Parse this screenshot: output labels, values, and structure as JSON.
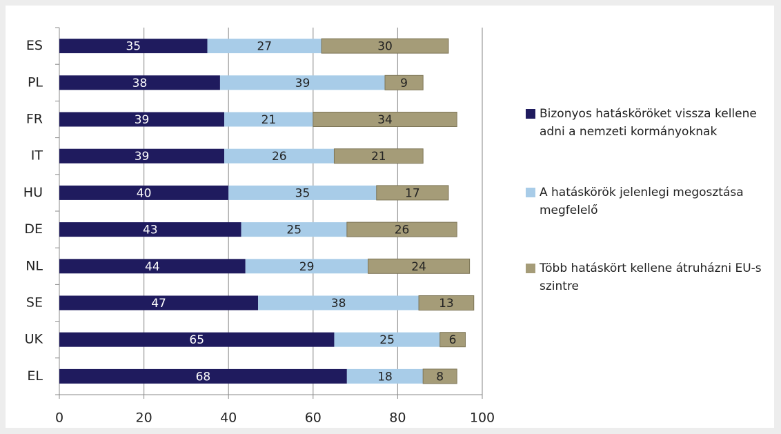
{
  "chart_data": {
    "type": "stacked_barh",
    "categories": [
      "ES",
      "PL",
      "FR",
      "IT",
      "HU",
      "DE",
      "NL",
      "SE",
      "UK",
      "EL"
    ],
    "series": [
      {
        "name": "Bizonyos hatásköröket vissza kellene adni a nemzeti kormányoknak",
        "color": "#1f1b5e",
        "values": [
          35,
          38,
          39,
          39,
          40,
          43,
          44,
          47,
          65,
          68
        ]
      },
      {
        "name": "A hatáskörök jelenlegi megosztása megfelelő",
        "color": "#a8cce8",
        "values": [
          27,
          39,
          21,
          26,
          35,
          25,
          29,
          38,
          25,
          18
        ]
      },
      {
        "name": "Több hatáskört kellene átruházni EU-s szintre",
        "color": "#a59c78",
        "values": [
          30,
          9,
          34,
          21,
          17,
          26,
          24,
          13,
          6,
          8
        ]
      }
    ],
    "xlim": [
      0,
      100
    ],
    "xticks": [
      0,
      20,
      40,
      60,
      80,
      100
    ],
    "grid": true,
    "legend": "right"
  }
}
